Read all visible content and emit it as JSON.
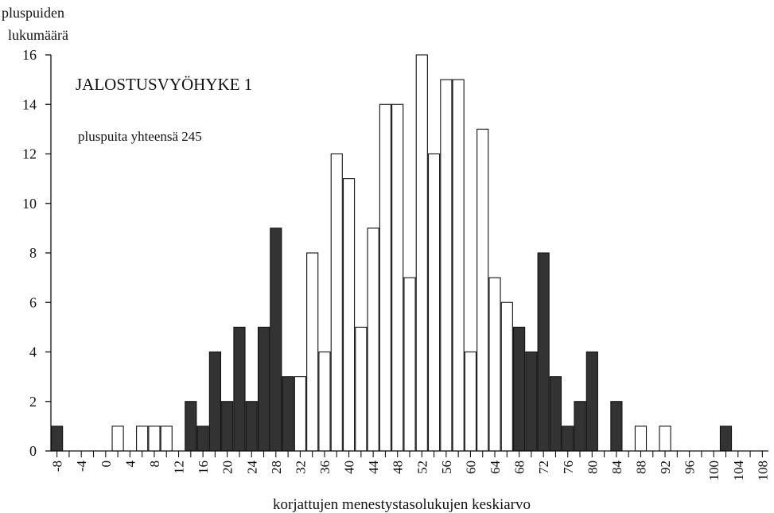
{
  "chart_data": {
    "type": "bar",
    "title": "JALOSTUSVYÖHYKE 1",
    "subtitle": "pluspuita yhteensä 245",
    "ylabel": [
      "pluspuiden",
      "lukumäärä"
    ],
    "xlabel": "korjattujen menestystasolukujen keskiarvo",
    "ylim": [
      0,
      16
    ],
    "yticks": [
      "0",
      "2",
      "4",
      "6",
      "8",
      "10",
      "12",
      "14",
      "16"
    ],
    "xlim": [
      -9,
      109
    ],
    "xticks": [
      "-8",
      "-4",
      "0",
      "4",
      "8",
      "12",
      "16",
      "20",
      "24",
      "28",
      "32",
      "36",
      "40",
      "44",
      "48",
      "52",
      "56",
      "60",
      "64",
      "68",
      "72",
      "76",
      "80",
      "84",
      "88",
      "92",
      "96",
      "100",
      "104",
      "108"
    ],
    "bin_width": 2,
    "fill_legend": {
      "dark": "#333333",
      "light": "#ffffff"
    },
    "series": [
      {
        "bars": [
          {
            "x": -8,
            "value": 1,
            "fill": "dark"
          },
          {
            "x": 2,
            "value": 1,
            "fill": "light"
          },
          {
            "x": 6,
            "value": 1,
            "fill": "light"
          },
          {
            "x": 8,
            "value": 1,
            "fill": "light"
          },
          {
            "x": 10,
            "value": 1,
            "fill": "light"
          },
          {
            "x": 14,
            "value": 2,
            "fill": "dark"
          },
          {
            "x": 16,
            "value": 1,
            "fill": "dark"
          },
          {
            "x": 18,
            "value": 4,
            "fill": "dark"
          },
          {
            "x": 20,
            "value": 2,
            "fill": "dark"
          },
          {
            "x": 22,
            "value": 5,
            "fill": "dark"
          },
          {
            "x": 24,
            "value": 2,
            "fill": "dark"
          },
          {
            "x": 26,
            "value": 5,
            "fill": "dark"
          },
          {
            "x": 28,
            "value": 9,
            "fill": "dark"
          },
          {
            "x": 30,
            "value": 3,
            "fill": "dark"
          },
          {
            "x": 32,
            "value": 3,
            "fill": "light"
          },
          {
            "x": 34,
            "value": 8,
            "fill": "light"
          },
          {
            "x": 36,
            "value": 4,
            "fill": "light"
          },
          {
            "x": 38,
            "value": 12,
            "fill": "light"
          },
          {
            "x": 40,
            "value": 11,
            "fill": "light"
          },
          {
            "x": 42,
            "value": 5,
            "fill": "light"
          },
          {
            "x": 44,
            "value": 9,
            "fill": "light"
          },
          {
            "x": 46,
            "value": 14,
            "fill": "light"
          },
          {
            "x": 48,
            "value": 14,
            "fill": "light"
          },
          {
            "x": 50,
            "value": 7,
            "fill": "light"
          },
          {
            "x": 52,
            "value": 16,
            "fill": "light"
          },
          {
            "x": 54,
            "value": 12,
            "fill": "light"
          },
          {
            "x": 56,
            "value": 15,
            "fill": "light"
          },
          {
            "x": 58,
            "value": 15,
            "fill": "light"
          },
          {
            "x": 60,
            "value": 4,
            "fill": "light"
          },
          {
            "x": 62,
            "value": 13,
            "fill": "light"
          },
          {
            "x": 64,
            "value": 7,
            "fill": "light"
          },
          {
            "x": 66,
            "value": 6,
            "fill": "light"
          },
          {
            "x": 68,
            "value": 5,
            "fill": "dark"
          },
          {
            "x": 70,
            "value": 4,
            "fill": "dark"
          },
          {
            "x": 72,
            "value": 8,
            "fill": "dark"
          },
          {
            "x": 74,
            "value": 3,
            "fill": "dark"
          },
          {
            "x": 76,
            "value": 1,
            "fill": "dark"
          },
          {
            "x": 78,
            "value": 2,
            "fill": "dark"
          },
          {
            "x": 80,
            "value": 4,
            "fill": "dark"
          },
          {
            "x": 84,
            "value": 2,
            "fill": "dark"
          },
          {
            "x": 88,
            "value": 1,
            "fill": "light"
          },
          {
            "x": 92,
            "value": 1,
            "fill": "light"
          },
          {
            "x": 102,
            "value": 1,
            "fill": "dark"
          }
        ]
      }
    ],
    "grid": false,
    "legend": "none"
  }
}
